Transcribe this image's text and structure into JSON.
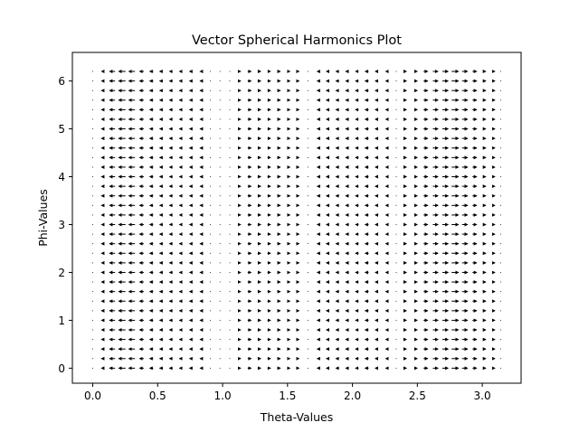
{
  "chart_data": {
    "type": "quiver",
    "title": "Vector Spherical Harmonics Plot",
    "xlabel": "Theta-Values",
    "ylabel": "Phi-Values",
    "xlim": [
      -0.157,
      3.299
    ],
    "ylim": [
      -0.314,
      6.597
    ],
    "xticks": [
      0.0,
      0.5,
      1.0,
      1.5,
      2.0,
      2.5,
      3.0
    ],
    "xtick_labels": [
      "0.0",
      "0.5",
      "1.0",
      "1.5",
      "2.0",
      "2.5",
      "3.0"
    ],
    "yticks": [
      0,
      1,
      2,
      3,
      4,
      5,
      6
    ],
    "ytick_labels": [
      "0",
      "1",
      "2",
      "3",
      "4",
      "5",
      "6"
    ],
    "grid": false,
    "theta": [
      0.0,
      0.0754,
      0.1508,
      0.2262,
      0.3016,
      0.377,
      0.4524,
      0.5278,
      0.6032,
      0.6786,
      0.754,
      0.8294,
      0.9048,
      0.9802,
      1.0556,
      1.131,
      1.2064,
      1.2818,
      1.3572,
      1.4326,
      1.508,
      1.5834,
      1.6588,
      1.7342,
      1.8096,
      1.885,
      1.9604,
      2.0358,
      2.1112,
      2.1866,
      2.262,
      2.3374,
      2.4128,
      2.4882,
      2.5636,
      2.639,
      2.7144,
      2.7898,
      2.8652,
      2.9406,
      3.016,
      3.0914,
      3.1416
    ],
    "phi": [
      0.0,
      0.2,
      0.4,
      0.6,
      0.8,
      1.0,
      1.2,
      1.4,
      1.6,
      1.8,
      2.0,
      2.2,
      2.4,
      2.6,
      2.8,
      3.0,
      3.2,
      3.4,
      3.6,
      3.8,
      4.0,
      4.2,
      4.4,
      4.6,
      4.8,
      5.0,
      5.2,
      5.4,
      5.6,
      5.8,
      6.0,
      6.2
    ],
    "u_profile": [
      0.0,
      -0.3,
      -0.8,
      -1.0,
      -0.9,
      -0.6,
      -0.5,
      -0.45,
      -0.45,
      -0.4,
      -0.3,
      -0.1,
      0.0,
      0.0,
      0.05,
      0.3,
      0.5,
      0.45,
      0.45,
      0.45,
      0.4,
      0.2,
      0.0,
      -0.2,
      -0.4,
      -0.45,
      -0.45,
      -0.45,
      -0.5,
      -0.4,
      -0.2,
      0.0,
      0.1,
      0.4,
      0.6,
      0.75,
      0.85,
      1.0,
      0.8,
      0.6,
      0.4,
      0.2,
      0.05
    ],
    "v": 0
  }
}
